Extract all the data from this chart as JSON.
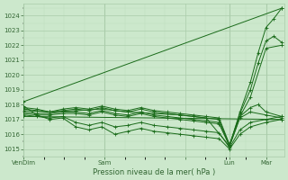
{
  "bg_color": "#cce8cc",
  "grid_major_color": "#aaccaa",
  "grid_minor_color": "#bbddbb",
  "line_color": "#1a6b1a",
  "font_color": "#336633",
  "xlabel": "Pression niveau de la mer( hPa )",
  "ylim": [
    1014.5,
    1024.8
  ],
  "xlim": [
    0,
    1.0
  ],
  "yticks": [
    1015,
    1016,
    1017,
    1018,
    1019,
    1020,
    1021,
    1022,
    1023,
    1024
  ],
  "xtick_positions": [
    0.0,
    0.31,
    0.62,
    0.79,
    0.93
  ],
  "xtick_labels": [
    "VenDim",
    "Sam",
    "",
    "Lun",
    "Mar"
  ],
  "vline_positions": [
    0.0,
    0.31,
    0.79,
    0.93
  ],
  "lines": [
    {
      "x": [
        0.0,
        0.05,
        0.1,
        0.15,
        0.2,
        0.25,
        0.3,
        0.35,
        0.4,
        0.45,
        0.5,
        0.55,
        0.6,
        0.65,
        0.7,
        0.75,
        0.79,
        0.83,
        0.87,
        0.9,
        0.93,
        0.96,
        0.99
      ],
      "y": [
        1017.7,
        1017.6,
        1017.5,
        1017.6,
        1017.7,
        1017.6,
        1017.8,
        1017.6,
        1017.5,
        1017.7,
        1017.5,
        1017.4,
        1017.3,
        1017.2,
        1017.1,
        1017.0,
        1015.2,
        1017.5,
        1019.5,
        1021.5,
        1023.2,
        1023.8,
        1024.5
      ]
    },
    {
      "x": [
        0.0,
        0.05,
        0.1,
        0.15,
        0.2,
        0.25,
        0.3,
        0.35,
        0.4,
        0.45,
        0.5,
        0.55,
        0.6,
        0.65,
        0.7,
        0.75,
        0.79,
        0.83,
        0.87,
        0.9,
        0.93,
        0.96,
        0.99
      ],
      "y": [
        1017.8,
        1017.7,
        1017.5,
        1017.7,
        1017.8,
        1017.7,
        1017.9,
        1017.7,
        1017.6,
        1017.8,
        1017.6,
        1017.5,
        1017.4,
        1017.3,
        1017.2,
        1017.1,
        1015.3,
        1017.4,
        1019.0,
        1020.8,
        1022.3,
        1022.6,
        1022.2
      ]
    },
    {
      "x": [
        0.0,
        0.1,
        0.2,
        0.3,
        0.4,
        0.5,
        0.6,
        0.7,
        0.79,
        0.83,
        0.87,
        0.93,
        0.99
      ],
      "y": [
        1017.6,
        1017.5,
        1017.6,
        1017.7,
        1017.5,
        1017.4,
        1017.3,
        1017.1,
        1015.2,
        1017.2,
        1018.5,
        1021.8,
        1022.0
      ]
    },
    {
      "x": [
        0.0,
        0.05,
        0.1,
        0.15,
        0.2,
        0.25,
        0.3,
        0.35,
        0.4,
        0.45,
        0.5,
        0.55,
        0.6,
        0.65,
        0.7,
        0.75,
        0.79,
        0.83,
        0.87,
        0.9,
        0.93,
        0.99
      ],
      "y": [
        1017.5,
        1017.4,
        1017.4,
        1017.5,
        1017.5,
        1017.4,
        1017.6,
        1017.4,
        1017.3,
        1017.5,
        1017.3,
        1017.2,
        1017.1,
        1017.0,
        1016.9,
        1016.8,
        1015.3,
        1017.2,
        1017.8,
        1018.0,
        1017.5,
        1017.2
      ]
    },
    {
      "x": [
        0.0,
        0.05,
        0.1,
        0.15,
        0.2,
        0.25,
        0.3,
        0.35,
        0.4,
        0.45,
        0.5,
        0.55,
        0.6,
        0.65,
        0.7,
        0.75,
        0.79,
        0.83,
        0.87,
        0.93,
        0.99
      ],
      "y": [
        1017.4,
        1017.3,
        1017.3,
        1017.4,
        1017.4,
        1017.3,
        1017.5,
        1017.3,
        1017.2,
        1017.4,
        1017.2,
        1017.1,
        1017.0,
        1016.9,
        1016.8,
        1016.7,
        1015.2,
        1017.1,
        1017.5,
        1017.3,
        1017.1
      ]
    },
    {
      "x": [
        0.0,
        0.05,
        0.1,
        0.15,
        0.2,
        0.25,
        0.3,
        0.35,
        0.4,
        0.45,
        0.5,
        0.55,
        0.6,
        0.65,
        0.7,
        0.75,
        0.79,
        0.83,
        0.87,
        0.93,
        0.99
      ],
      "y": [
        1017.3,
        1017.2,
        1017.1,
        1017.2,
        1016.8,
        1016.6,
        1016.8,
        1016.5,
        1016.6,
        1016.8,
        1016.6,
        1016.5,
        1016.4,
        1016.3,
        1016.2,
        1016.1,
        1015.1,
        1016.3,
        1016.8,
        1017.0,
        1017.2
      ]
    },
    {
      "x": [
        0.0,
        0.05,
        0.1,
        0.15,
        0.2,
        0.25,
        0.3,
        0.35,
        0.4,
        0.45,
        0.5,
        0.55,
        0.6,
        0.65,
        0.7,
        0.75,
        0.79,
        0.83,
        0.87,
        0.93,
        0.99
      ],
      "y": [
        1017.9,
        1017.3,
        1017.0,
        1017.1,
        1016.5,
        1016.3,
        1016.5,
        1016.0,
        1016.2,
        1016.4,
        1016.2,
        1016.1,
        1016.0,
        1015.9,
        1015.8,
        1015.7,
        1015.0,
        1016.0,
        1016.5,
        1016.8,
        1017.0
      ]
    },
    {
      "x": [
        0.0,
        0.99
      ],
      "y": [
        1018.2,
        1024.5
      ]
    },
    {
      "x": [
        0.0,
        0.99
      ],
      "y": [
        1017.2,
        1017.0
      ]
    }
  ]
}
